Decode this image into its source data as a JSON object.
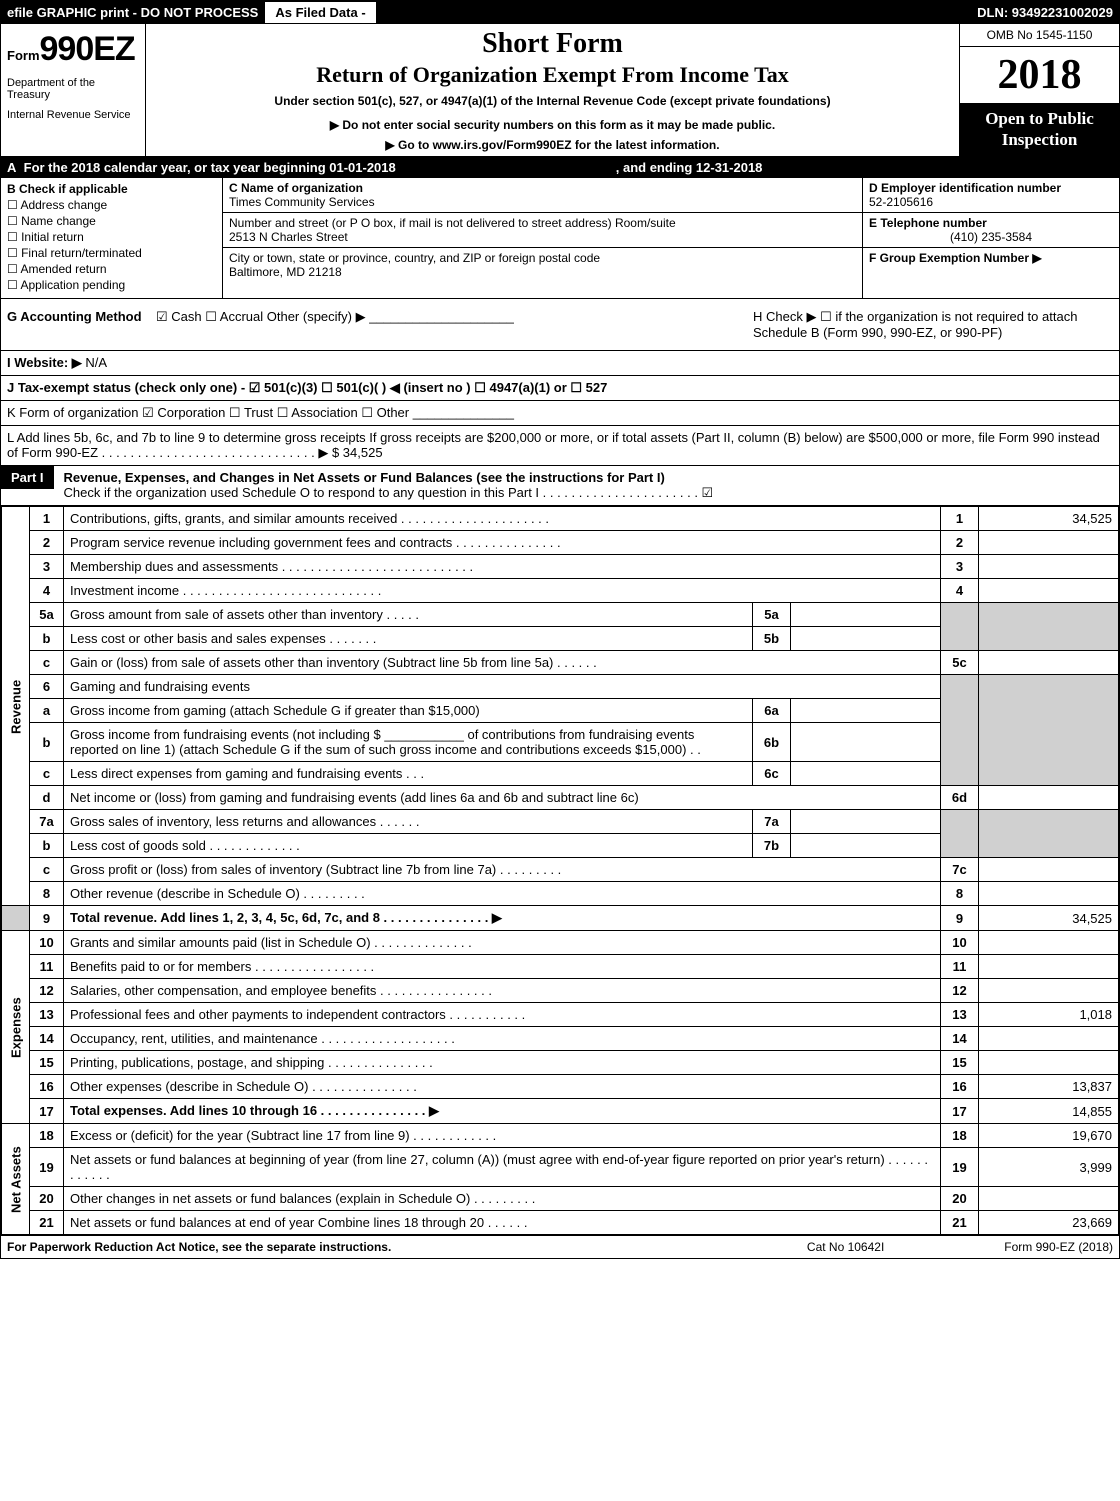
{
  "header": {
    "efile": "efile GRAPHIC print - DO NOT PROCESS",
    "asfiled": "As Filed Data -",
    "dln": "DLN: 93492231002029"
  },
  "form": {
    "prefix": "Form",
    "number": "990EZ",
    "dept1": "Department of the Treasury",
    "dept2": "Internal Revenue Service",
    "short": "Short Form",
    "title": "Return of Organization Exempt From Income Tax",
    "under": "Under section 501(c), 527, or 4947(a)(1) of the Internal Revenue Code (except private foundations)",
    "note": "▶ Do not enter social security numbers on this form as it may be made public.",
    "goto": "▶ Go to www.irs.gov/Form990EZ for the latest information.",
    "omb": "OMB No 1545-1150",
    "year": "2018",
    "open": "Open to Public Inspection"
  },
  "rowA": {
    "a_label": "A",
    "text": "For the 2018 calendar year, or tax year beginning 01-01-2018",
    "ending": ", and ending 12-31-2018"
  },
  "colB": {
    "head": "B Check if applicable",
    "items": [
      "Address change",
      "Name change",
      "Initial return",
      "Final return/terminated",
      "Amended return",
      "Application pending"
    ]
  },
  "colC": {
    "c_label": "C Name of organization",
    "org": "Times Community Services",
    "addr_label": "Number and street (or P O box, if mail is not delivered to street address)  Room/suite",
    "addr": "2513 N Charles Street",
    "city_label": "City or town, state or province, country, and ZIP or foreign postal code",
    "city": "Baltimore, MD  21218"
  },
  "colDE": {
    "d_label": "D Employer identification number",
    "ein": "52-2105616",
    "e_label": "E Telephone number",
    "phone": "(410) 235-3584",
    "f_label": "F Group Exemption Number  ▶"
  },
  "rowG": {
    "label": "G Accounting Method",
    "opts": "☑ Cash   ☐ Accrual   Other (specify) ▶ ____________________"
  },
  "rowH": {
    "text": "H   Check ▶  ☐ if the organization is not required to attach Schedule B (Form 990, 990-EZ, or 990-PF)"
  },
  "rowI": {
    "label": "I Website: ▶",
    "val": "N/A"
  },
  "rowJ": {
    "text": "J Tax-exempt status (check only one) - ☑ 501(c)(3)  ☐ 501(c)( ) ◀ (insert no ) ☐ 4947(a)(1) or ☐ 527"
  },
  "rowK": {
    "text": "K Form of organization    ☑ Corporation   ☐ Trust   ☐ Association   ☐ Other ______________"
  },
  "rowL": {
    "text": "L Add lines 5b, 6c, and 7b to line 9 to determine gross receipts  If gross receipts are $200,000 or more, or if total assets (Part II, column (B) below) are $500,000 or more, file Form 990 instead of Form 990-EZ . . . . . . . . . . . . . . . . . . . . . . . . . . . . . . ▶ $ 34,525"
  },
  "part1": {
    "tag": "Part I",
    "title": "Revenue, Expenses, and Changes in Net Assets or Fund Balances (see the instructions for Part I)",
    "sub": "Check if the organization used Schedule O to respond to any question in this Part I . . . . . . . . . . . . . . . . . . . . . . ☑"
  },
  "sections": {
    "revenue": "Revenue",
    "expenses": "Expenses",
    "netassets": "Net Assets"
  },
  "lines": {
    "l1": {
      "n": "1",
      "d": "Contributions, gifts, grants, and similar amounts received . . . . . . . . . . . . . . . . . . . . .",
      "b": "1",
      "a": "34,525"
    },
    "l2": {
      "n": "2",
      "d": "Program service revenue including government fees and contracts . . . . . . . . . . . . . . .",
      "b": "2",
      "a": ""
    },
    "l3": {
      "n": "3",
      "d": "Membership dues and assessments . . . . . . . . . . . . . . . . . . . . . . . . . . .",
      "b": "3",
      "a": ""
    },
    "l4": {
      "n": "4",
      "d": "Investment income . . . . . . . . . . . . . . . . . . . . . . . . . . . .",
      "b": "4",
      "a": ""
    },
    "l5a": {
      "n": "5a",
      "d": "Gross amount from sale of assets other than inventory . . . . .",
      "sb": "5a",
      "sv": ""
    },
    "l5b": {
      "n": "b",
      "d": "Less  cost or other basis and sales expenses . . . . . . .",
      "sb": "5b",
      "sv": ""
    },
    "l5c": {
      "n": "c",
      "d": "Gain or (loss) from sale of assets other than inventory (Subtract line 5b from line 5a) . . . . . .",
      "b": "5c",
      "a": ""
    },
    "l6": {
      "n": "6",
      "d": "Gaming and fundraising events"
    },
    "l6a": {
      "n": "a",
      "d": "Gross income from gaming (attach Schedule G if greater than $15,000)",
      "sb": "6a",
      "sv": ""
    },
    "l6b": {
      "n": "b",
      "d": "Gross income from fundraising events (not including $ ___________ of contributions from fundraising events reported on line 1) (attach Schedule G if the sum of such gross income and contributions exceeds $15,000)    . .",
      "sb": "6b",
      "sv": ""
    },
    "l6c": {
      "n": "c",
      "d": "Less  direct expenses from gaming and fundraising events     . . .",
      "sb": "6c",
      "sv": ""
    },
    "l6d": {
      "n": "d",
      "d": "Net income or (loss) from gaming and fundraising events (add lines 6a and 6b and subtract line 6c)",
      "b": "6d",
      "a": ""
    },
    "l7a": {
      "n": "7a",
      "d": "Gross sales of inventory, less returns and allowances . . . . . .",
      "sb": "7a",
      "sv": ""
    },
    "l7b": {
      "n": "b",
      "d": "Less  cost of goods sold             . . . . . . . . . . . . .",
      "sb": "7b",
      "sv": ""
    },
    "l7c": {
      "n": "c",
      "d": "Gross profit or (loss) from sales of inventory (Subtract line 7b from line 7a) . . . . . . . . .",
      "b": "7c",
      "a": ""
    },
    "l8": {
      "n": "8",
      "d": "Other revenue (describe in Schedule O)                           . . . . . . . . .",
      "b": "8",
      "a": ""
    },
    "l9": {
      "n": "9",
      "d": "Total revenue. Add lines 1, 2, 3, 4, 5c, 6d, 7c, and 8 . . . . . . . . . . . . . . .    ▶",
      "b": "9",
      "a": "34,525",
      "bold": true
    },
    "l10": {
      "n": "10",
      "d": "Grants and similar amounts paid (list in Schedule O)            . . . . . . . . . . . . . .",
      "b": "10",
      "a": ""
    },
    "l11": {
      "n": "11",
      "d": "Benefits paid to or for members                . . . . . . . . . . . . . . . . .",
      "b": "11",
      "a": ""
    },
    "l12": {
      "n": "12",
      "d": "Salaries, other compensation, and employee benefits . . . . . . . . . . . . . . . .",
      "b": "12",
      "a": ""
    },
    "l13": {
      "n": "13",
      "d": "Professional fees and other payments to independent contractors . . . . . . . . . . .",
      "b": "13",
      "a": "1,018"
    },
    "l14": {
      "n": "14",
      "d": "Occupancy, rent, utilities, and maintenance . . . . . . . . . . . . . . . . . . .",
      "b": "14",
      "a": ""
    },
    "l15": {
      "n": "15",
      "d": "Printing, publications, postage, and shipping             . . . . . . . . . . . . . . .",
      "b": "15",
      "a": ""
    },
    "l16": {
      "n": "16",
      "d": "Other expenses (describe in Schedule O)               . . . . . . . . . . . . . . .",
      "b": "16",
      "a": "13,837"
    },
    "l17": {
      "n": "17",
      "d": "Total expenses. Add lines 10 through 16         . . . . . . . . . . . . . . .    ▶",
      "b": "17",
      "a": "14,855",
      "bold": true
    },
    "l18": {
      "n": "18",
      "d": "Excess or (deficit) for the year (Subtract line 17 from line 9)      . . . . . . . . . . . .",
      "b": "18",
      "a": "19,670"
    },
    "l19": {
      "n": "19",
      "d": "Net assets or fund balances at beginning of year (from line 27, column (A)) (must agree with end-of-year figure reported on prior year's return)               . . . . . . . . . . . .",
      "b": "19",
      "a": "3,999"
    },
    "l20": {
      "n": "20",
      "d": "Other changes in net assets or fund balances (explain in Schedule O)      . . . . . . . . .",
      "b": "20",
      "a": ""
    },
    "l21": {
      "n": "21",
      "d": "Net assets or fund balances at end of year  Combine lines 18 through 20        . . . . . .",
      "b": "21",
      "a": "23,669"
    }
  },
  "footer": {
    "left": "For Paperwork Reduction Act Notice, see the separate instructions.",
    "mid": "Cat  No  10642I",
    "right": "Form 990-EZ (2018)"
  }
}
